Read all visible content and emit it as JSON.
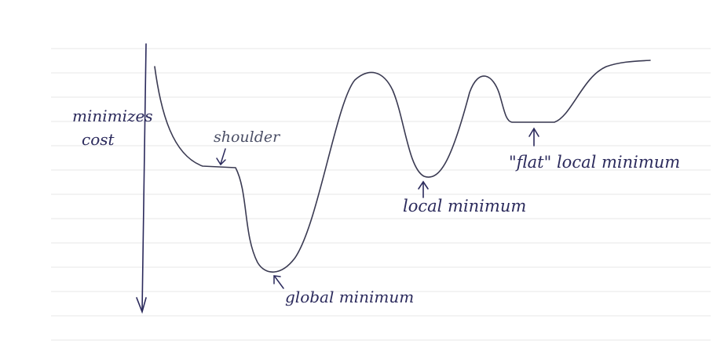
{
  "axis_label_line1": "minimizes",
  "axis_label_line2": "cost",
  "labels": {
    "shoulder": "shoulder",
    "global_minimum": "global minimum",
    "local_minimum": "local minimum",
    "flat_local_minimum": "\"flat\" local minimum"
  },
  "colors": {
    "ink": "#2b2a5c",
    "paper_lines": "#e6e6e6"
  }
}
